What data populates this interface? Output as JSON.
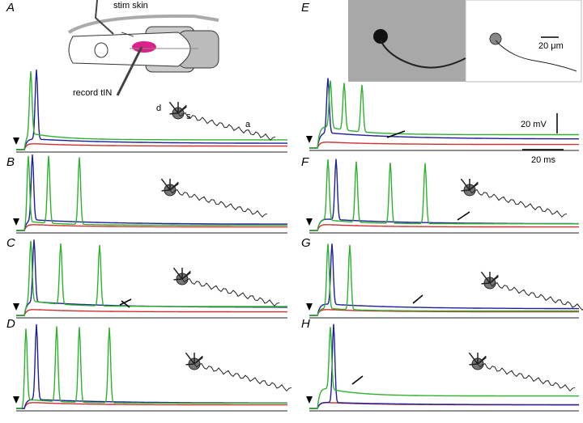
{
  "panels": [
    {
      "label": "A"
    },
    {
      "label": "B"
    },
    {
      "label": "C"
    },
    {
      "label": "D"
    },
    {
      "label": "E"
    },
    {
      "label": "F"
    },
    {
      "label": "G"
    },
    {
      "label": "H"
    }
  ],
  "schematic": {
    "stim": "stim skin",
    "record": "record tIN"
  },
  "neuron_labels": {
    "dendrite": "d",
    "soma": "s",
    "axon": "a"
  },
  "scale_bars": {
    "photo": "20 μm",
    "voltage": "20 mV",
    "time": "20 ms"
  }
}
